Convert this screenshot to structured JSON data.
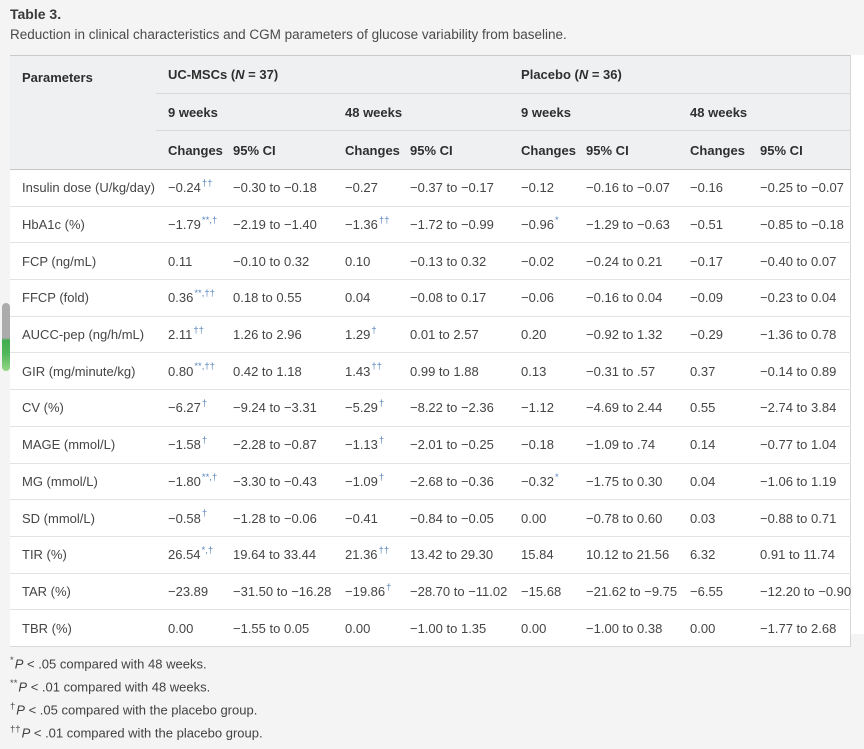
{
  "page": {
    "title": "Table 3.",
    "subtitle": "Reduction in clinical characteristics and CGM parameters of glucose variability from baseline."
  },
  "colors": {
    "link_blue": "#5b87bf",
    "accent_green": "#3fae4e",
    "thumb_gray": "#ababab",
    "header_bg": "#eef0f2",
    "page_bg": "#f4f4f4"
  },
  "table": {
    "corner_header": "Parameters",
    "groups": [
      {
        "pre": "UC-MSCs (",
        "n": "N",
        "post": " = 37)"
      },
      {
        "pre": "Placebo (",
        "n": "N",
        "post": " = 36)"
      }
    ],
    "period_headers": [
      "9 weeks",
      "48 weeks",
      "9 weeks",
      "48 weeks"
    ],
    "measure_headers": [
      "Changes",
      "95% CI",
      "Changes",
      "95% CI",
      "Changes",
      "95% CI",
      "Changes",
      "95% CI"
    ],
    "rows": [
      {
        "param": "Insulin dose (U/kg/day)",
        "cells": [
          {
            "v": "−0.24",
            "sup": "††"
          },
          {
            "v": "−0.30 to −0.18"
          },
          {
            "v": "−0.27"
          },
          {
            "v": "−0.37 to −0.17"
          },
          {
            "v": "−0.12"
          },
          {
            "v": "−0.16 to −0.07"
          },
          {
            "v": "−0.16"
          },
          {
            "v": "−0.25 to −0.07"
          }
        ]
      },
      {
        "param": "HbA1c (%)",
        "cells": [
          {
            "v": "−1.79",
            "sup": "**,†"
          },
          {
            "v": "−2.19 to −1.40"
          },
          {
            "v": "−1.36",
            "sup": "††"
          },
          {
            "v": "−1.72 to −0.99"
          },
          {
            "v": "−0.96",
            "sup": "*"
          },
          {
            "v": "−1.29 to −0.63"
          },
          {
            "v": "−0.51"
          },
          {
            "v": "−0.85 to −0.18"
          }
        ]
      },
      {
        "param": "FCP (ng/mL)",
        "cells": [
          {
            "v": "0.11"
          },
          {
            "v": "−0.10 to 0.32"
          },
          {
            "v": "0.10"
          },
          {
            "v": "−0.13 to 0.32"
          },
          {
            "v": "−0.02"
          },
          {
            "v": "−0.24 to 0.21"
          },
          {
            "v": "−0.17"
          },
          {
            "v": "−0.40 to 0.07"
          }
        ]
      },
      {
        "param": "FFCP (fold)",
        "cells": [
          {
            "v": "0.36",
            "sup": "**,††"
          },
          {
            "v": "0.18 to 0.55"
          },
          {
            "v": "0.04"
          },
          {
            "v": "−0.08 to 0.17"
          },
          {
            "v": "−0.06"
          },
          {
            "v": "−0.16 to 0.04"
          },
          {
            "v": "−0.09"
          },
          {
            "v": "−0.23 to 0.04"
          }
        ]
      },
      {
        "param": "AUCC-pep (ng/h/mL)",
        "cells": [
          {
            "v": "2.11",
            "sup": "††"
          },
          {
            "v": "1.26 to 2.96"
          },
          {
            "v": "1.29",
            "sup": "†"
          },
          {
            "v": "0.01 to 2.57"
          },
          {
            "v": "0.20"
          },
          {
            "v": "−0.92 to 1.32"
          },
          {
            "v": "−0.29"
          },
          {
            "v": "−1.36 to 0.78"
          }
        ]
      },
      {
        "param": "GIR (mg/minute/kg)",
        "cells": [
          {
            "v": "0.80",
            "sup": "**,††"
          },
          {
            "v": "0.42 to 1.18"
          },
          {
            "v": "1.43",
            "sup": "††"
          },
          {
            "v": "0.99 to 1.88"
          },
          {
            "v": "0.13"
          },
          {
            "v": "−0.31 to .57"
          },
          {
            "v": "0.37"
          },
          {
            "v": "−0.14 to 0.89"
          }
        ]
      },
      {
        "param": "CV (%)",
        "cells": [
          {
            "v": "−6.27",
            "sup": "†"
          },
          {
            "v": "−9.24 to −3.31"
          },
          {
            "v": "−5.29",
            "sup": "†"
          },
          {
            "v": "−8.22 to −2.36"
          },
          {
            "v": "−1.12"
          },
          {
            "v": "−4.69 to 2.44"
          },
          {
            "v": "0.55"
          },
          {
            "v": "−2.74 to 3.84"
          }
        ]
      },
      {
        "param": "MAGE (mmol/L)",
        "cells": [
          {
            "v": "−1.58",
            "sup": "†"
          },
          {
            "v": "−2.28 to −0.87"
          },
          {
            "v": "−1.13",
            "sup": "†"
          },
          {
            "v": "−2.01 to −0.25"
          },
          {
            "v": "−0.18"
          },
          {
            "v": "−1.09 to .74"
          },
          {
            "v": "0.14"
          },
          {
            "v": "−0.77 to 1.04"
          }
        ]
      },
      {
        "param": "MG (mmol/L)",
        "cells": [
          {
            "v": "−1.80",
            "sup": "**,†"
          },
          {
            "v": "−3.30 to −0.43"
          },
          {
            "v": "−1.09",
            "sup": "†"
          },
          {
            "v": "−2.68 to −0.36"
          },
          {
            "v": "−0.32",
            "sup": "*"
          },
          {
            "v": "−1.75 to 0.30"
          },
          {
            "v": "0.04"
          },
          {
            "v": "−1.06 to 1.19"
          }
        ]
      },
      {
        "param": "SD (mmol/L)",
        "cells": [
          {
            "v": "−0.58",
            "sup": "†"
          },
          {
            "v": "−1.28 to −0.06"
          },
          {
            "v": "−0.41"
          },
          {
            "v": "−0.84 to −0.05"
          },
          {
            "v": "0.00"
          },
          {
            "v": "−0.78 to 0.60"
          },
          {
            "v": "0.03"
          },
          {
            "v": "−0.88 to 0.71"
          }
        ]
      },
      {
        "param": "TIR (%)",
        "cells": [
          {
            "v": "26.54",
            "sup": "*,†"
          },
          {
            "v": "19.64 to 33.44"
          },
          {
            "v": "21.36",
            "sup": "††"
          },
          {
            "v": "13.42 to 29.30"
          },
          {
            "v": "15.84"
          },
          {
            "v": "10.12 to 21.56"
          },
          {
            "v": "6.32"
          },
          {
            "v": "0.91 to 11.74"
          }
        ]
      },
      {
        "param": "TAR (%)",
        "cells": [
          {
            "v": "−23.89"
          },
          {
            "v": "−31.50 to −16.28"
          },
          {
            "v": "−19.86",
            "sup": "†"
          },
          {
            "v": "−28.70 to −11.02"
          },
          {
            "v": "−15.68"
          },
          {
            "v": "−21.62 to −9.75"
          },
          {
            "v": "−6.55"
          },
          {
            "v": "−12.20 to −0.90"
          }
        ]
      },
      {
        "param": "TBR (%)",
        "cells": [
          {
            "v": "0.00"
          },
          {
            "v": "−1.55 to 0.05"
          },
          {
            "v": "0.00"
          },
          {
            "v": "−1.00 to 1.35"
          },
          {
            "v": "0.00"
          },
          {
            "v": "−1.00 to 0.38"
          },
          {
            "v": "0.00"
          },
          {
            "v": "−1.77 to 2.68"
          }
        ]
      }
    ]
  },
  "footnotes": [
    {
      "marker": "*",
      "p": "P",
      "rest": " < .05 compared with 48 weeks."
    },
    {
      "marker": "**",
      "p": "P",
      "rest": " < .01 compared with 48 weeks."
    },
    {
      "marker": "†",
      "p": "P",
      "rest": " < .05 compared with the placebo group."
    },
    {
      "marker": "††",
      "p": "P",
      "rest": " < .01 compared with the placebo group."
    }
  ]
}
